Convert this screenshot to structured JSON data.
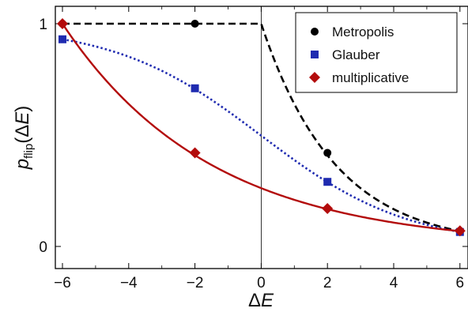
{
  "chart_data": {
    "type": "line",
    "title": "",
    "xlabel": {
      "main": "Δ",
      "italic": "E"
    },
    "ylabel": {
      "main": "p",
      "sub": "flip",
      "open": "(Δ",
      "italic": "E",
      "close": ")"
    },
    "xlim": [
      -6.2,
      6.2
    ],
    "ylim": [
      -0.05,
      1.05
    ],
    "xticks": [
      -6,
      -4,
      -2,
      0,
      2,
      4,
      6
    ],
    "xtick_labels": [
      "−6",
      "−4",
      "−2",
      "0",
      "2",
      "4",
      "6"
    ],
    "yticks": [
      0,
      1
    ],
    "ytick_labels": [
      "0",
      "1"
    ],
    "zero_line_x": 0,
    "grid": false,
    "legend": {
      "position": "top-right"
    },
    "series": [
      {
        "name": "Metropolis",
        "color": "#000000",
        "marker": "circle",
        "line_style": "dashed",
        "points": [
          [
            -6,
            1.0
          ],
          [
            -2,
            1.0
          ],
          [
            2,
            0.42
          ],
          [
            6,
            0.07
          ]
        ],
        "curve": "Metropolis"
      },
      {
        "name": "Glauber",
        "color": "#1f2bb0",
        "marker": "square",
        "line_style": "dotted",
        "points": [
          [
            -6,
            0.93
          ],
          [
            -2,
            0.71
          ],
          [
            2,
            0.29
          ],
          [
            6,
            0.065
          ]
        ],
        "curve": "Glauber"
      },
      {
        "name": "multiplicative",
        "color": "#b30c0c",
        "marker": "diamond",
        "line_style": "solid",
        "points": [
          [
            -6,
            1.0
          ],
          [
            -2,
            0.42
          ],
          [
            2,
            0.17
          ],
          [
            6,
            0.07
          ]
        ],
        "curve": "multiplicative"
      }
    ]
  }
}
